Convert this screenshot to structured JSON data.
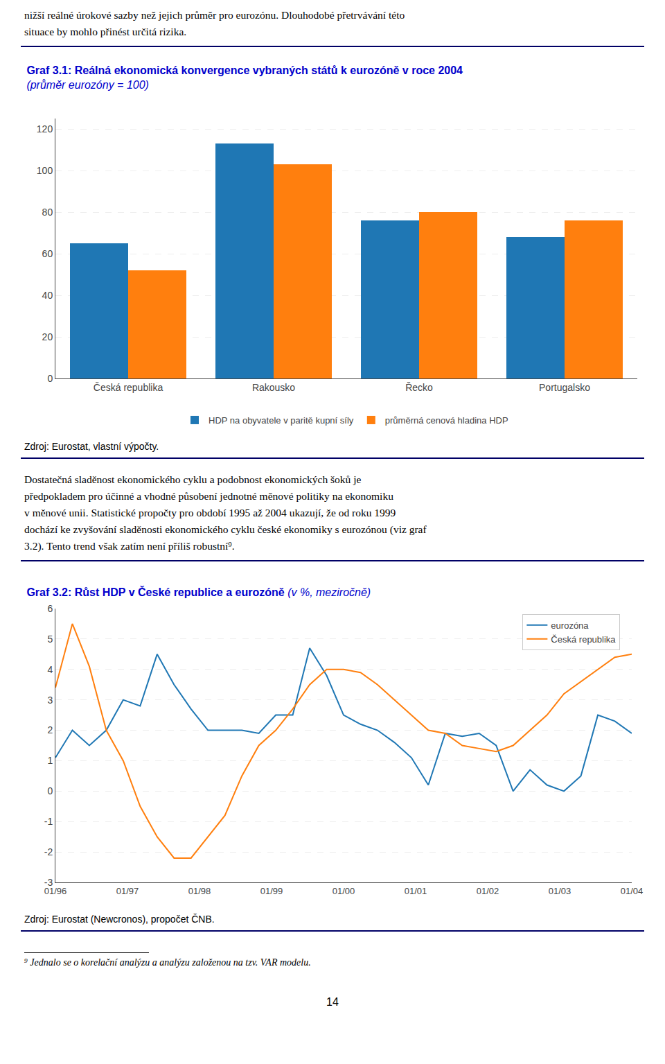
{
  "page_text": {
    "top": [
      "nižší reálné úrokové sazby než jejich průměr pro eurozónu. Dlouhodobé přetrvávání této",
      "situace by mohlo přinést určitá rizika."
    ],
    "body": [
      "Dostatečná sladěnost ekonomického cyklu a podobnost ekonomických šoků je",
      "předpokladem pro účinné a vhodné působení jednotné měnové politiky na ekonomiku",
      "v měnové unii. Statistické propočty pro období 1995 až 2004 ukazují, že od roku 1999",
      "dochází ke zvyšování sladěnosti ekonomického cyklu české ekonomiky s eurozónou (viz graf",
      "3.2). Tento trend však zatím není příliš robustní⁹."
    ],
    "footnote": "⁹ Jednalo se o korelační analýzu a analýzu založenou na tzv. VAR modelu.",
    "page_number": "14"
  },
  "chart_data": [
    {
      "type": "bar",
      "title": "Graf 3.1: Reálná ekonomická konvergence vybraných států k eurozóně v roce 2004",
      "subtitle": "(průměr eurozóny = 100)",
      "categories": [
        "Česká republika",
        "Rakousko",
        "Řecko",
        "Portugalsko"
      ],
      "series": [
        {
          "name": "HDP na obyvatele v paritě kupní síly",
          "values": [
            65,
            113,
            76,
            68
          ]
        },
        {
          "name": "průměrná cenová hladina HDP",
          "values": [
            52,
            103,
            80,
            76
          ]
        }
      ],
      "ylim": [
        0,
        125
      ],
      "yticks": [
        0,
        20,
        40,
        60,
        80,
        100,
        120
      ],
      "grid": true,
      "legend": "bottom",
      "annotations": [
        "Zdroj: Eurostat, vlastní výpočty."
      ]
    },
    {
      "type": "line",
      "title": "Graf 3.2: Růst HDP v České republice a eurozóně",
      "subtitle": "(v %, meziročně)",
      "x": [
        0,
        1,
        2,
        3,
        4,
        5,
        6,
        7,
        8,
        9,
        10,
        11,
        12,
        13,
        14,
        15,
        16,
        17,
        18,
        19,
        20,
        21,
        22,
        23,
        24,
        25,
        26,
        27,
        28,
        29,
        30,
        31,
        32,
        33,
        34
      ],
      "xlim": [
        0,
        34
      ],
      "xticks": [
        {
          "value": 0,
          "label": "01/96"
        },
        {
          "value": 4.25,
          "label": "01/97"
        },
        {
          "value": 8.5,
          "label": "01/98"
        },
        {
          "value": 12.75,
          "label": "01/99"
        },
        {
          "value": 17,
          "label": "01/00"
        },
        {
          "value": 21.25,
          "label": "01/01"
        },
        {
          "value": 25.5,
          "label": "01/02"
        },
        {
          "value": 29.75,
          "label": "01/03"
        },
        {
          "value": 34,
          "label": "01/04"
        }
      ],
      "series": [
        {
          "name": "eurozóna",
          "values": [
            1.1,
            2.0,
            1.5,
            2.0,
            3.0,
            2.8,
            4.5,
            3.5,
            2.7,
            2.0,
            2.0,
            2.0,
            1.9,
            2.5,
            2.5,
            4.7,
            3.8,
            2.5,
            2.2,
            2.0,
            1.6,
            1.1,
            0.2,
            1.9,
            1.8,
            1.9,
            1.5,
            0.0,
            0.7,
            0.2,
            0.0,
            0.5,
            2.5,
            2.3,
            1.9
          ]
        },
        {
          "name": "Česká republika",
          "values": [
            3.4,
            5.5,
            4.1,
            2.0,
            1.0,
            -0.5,
            -1.5,
            -2.2,
            -2.2,
            -1.5,
            -0.8,
            0.5,
            1.5,
            2.0,
            2.7,
            3.5,
            4.0,
            4.0,
            3.9,
            3.5,
            3.0,
            2.5,
            2.0,
            1.9,
            1.5,
            1.4,
            1.3,
            1.5,
            2.0,
            2.5,
            3.2,
            3.6,
            4.0,
            4.4,
            4.5
          ]
        }
      ],
      "ylim": [
        -3,
        6
      ],
      "yticks": [
        -3,
        -2,
        -1,
        0,
        1,
        2,
        3,
        4,
        5,
        6
      ],
      "grid": true,
      "legend": "top right",
      "annotations": [
        "Zdroj: Eurostat (Newcronos), propočet ČNB."
      ]
    }
  ]
}
